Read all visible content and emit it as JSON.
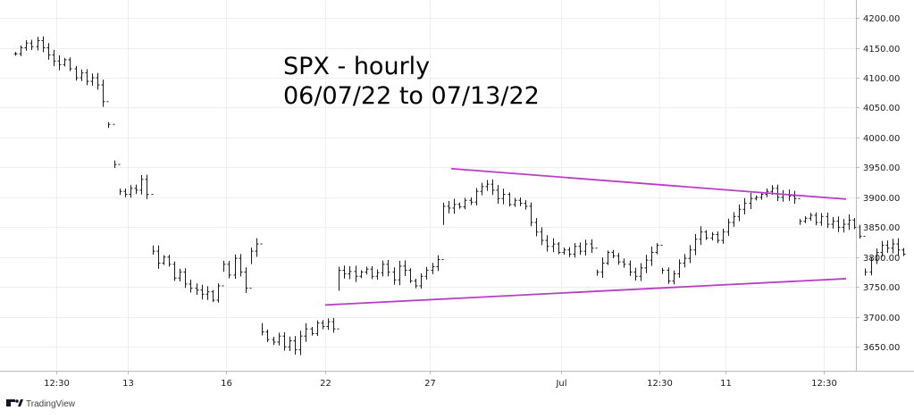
{
  "chart_data": {
    "type": "ohlc",
    "title": "SPX - hourly",
    "subtitle": "06/07/22 to 07/13/22",
    "y_range": [
      3610,
      4230
    ],
    "y_ticks": [
      4200,
      4150,
      4100,
      4050,
      4000,
      3950,
      3900,
      3850,
      3800,
      3750,
      3700,
      3650
    ],
    "y_tick_labels": [
      "4200.00",
      "4150.00",
      "4100.00",
      "4050.00",
      "4000.00",
      "3950.00",
      "3900.00",
      "3850.00",
      "3800.00",
      "3750.00",
      "3700.00",
      "3650.00"
    ],
    "x_range": [
      0,
      152
    ],
    "x_ticks": [
      {
        "bar": 8,
        "label": "12:30"
      },
      {
        "bar": 21,
        "label": "13"
      },
      {
        "bar": 39,
        "label": "16"
      },
      {
        "bar": 57,
        "label": "22"
      },
      {
        "bar": 76,
        "label": "27"
      },
      {
        "bar": 100,
        "label": "Jul"
      },
      {
        "bar": 118,
        "label": "12:30"
      },
      {
        "bar": 130,
        "label": "11"
      },
      {
        "bar": 148,
        "label": "12:30"
      }
    ],
    "grid": true,
    "legend": "none",
    "colors": {
      "bars": "#1a1a1a",
      "trendlines": "#b83ec6",
      "grid": "#eeeeee",
      "axis": "#bbbbbb"
    },
    "closes": [
      4140,
      4150,
      4158,
      4152,
      4162,
      4150,
      4138,
      4128,
      4122,
      4130,
      4115,
      4100,
      4108,
      4094,
      4100,
      4088,
      4060,
      4022,
      3955,
      3910,
      3905,
      3915,
      3912,
      3930,
      3905,
      3810,
      3790,
      3800,
      3788,
      3765,
      3775,
      3755,
      3748,
      3745,
      3738,
      3742,
      3728,
      3752,
      3788,
      3770,
      3798,
      3775,
      3748,
      3810,
      3822,
      3675,
      3662,
      3658,
      3668,
      3650,
      3660,
      3645,
      3668,
      3680,
      3672,
      3690,
      3684,
      3692,
      3680,
      3778,
      3772,
      3776,
      3768,
      3775,
      3780,
      3768,
      3774,
      3788,
      3775,
      3762,
      3785,
      3778,
      3760,
      3752,
      3768,
      3778,
      3784,
      3796,
      3885,
      3882,
      3888,
      3884,
      3895,
      3892,
      3910,
      3918,
      3922,
      3912,
      3898,
      3905,
      3888,
      3895,
      3890,
      3885,
      3858,
      3842,
      3828,
      3818,
      3822,
      3808,
      3812,
      3805,
      3818,
      3810,
      3822,
      3815,
      3775,
      3790,
      3808,
      3802,
      3792,
      3788,
      3775,
      3768,
      3782,
      3795,
      3808,
      3820,
      3778,
      3760,
      3772,
      3790,
      3798,
      3812,
      3830,
      3842,
      3832,
      3838,
      3828,
      3842,
      3858,
      3868,
      3880,
      3890,
      3898,
      3900,
      3905,
      3910,
      3915,
      3900,
      3905,
      3902,
      3898,
      3860,
      3865,
      3870,
      3858,
      3868,
      3855,
      3860,
      3850,
      3855,
      3862,
      3850,
      3835,
      3775,
      3795,
      3808,
      3820,
      3815,
      3822,
      3812,
      3805
    ],
    "trendlines": [
      {
        "from": [
          80,
          3948
        ],
        "to": [
          152,
          3897
        ]
      },
      {
        "from": [
          57,
          3720
        ],
        "to": [
          152,
          3764
        ]
      }
    ]
  },
  "branding": {
    "name": "TradingView"
  }
}
